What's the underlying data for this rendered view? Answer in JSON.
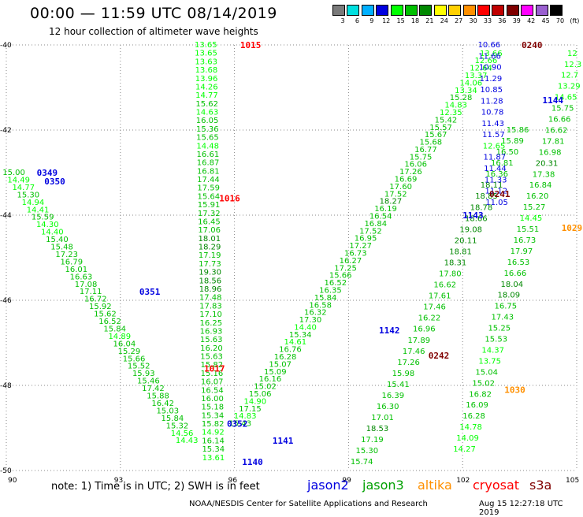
{
  "header": {
    "title": "00:00 — 11:59 UTC 08/14/2019",
    "subtitle": "12 hour collection of altimeter wave heights"
  },
  "colorbar": {
    "colors": [
      "#7a7a7a",
      "#00e0e0",
      "#00b0ff",
      "#0000e0",
      "#00ff00",
      "#00c000",
      "#008800",
      "#ffff00",
      "#ffd000",
      "#ff9000",
      "#ff0000",
      "#c00000",
      "#800000",
      "#ff00ff",
      "#9a60d0",
      "#000000"
    ],
    "labels": [
      "3",
      "6",
      "9",
      "12",
      "15",
      "18",
      "21",
      "24",
      "27",
      "30",
      "33",
      "36",
      "39",
      "42",
      "45",
      "70"
    ],
    "unit": "(ft)"
  },
  "footer": {
    "note": "note:  1) Time is in UTC;  2) SWH is in feet",
    "satellites": [
      {
        "name": "jason2",
        "color": "#0000e0"
      },
      {
        "name": "jason3",
        "color": "#00a000"
      },
      {
        "name": "altika",
        "color": "#ff9000"
      },
      {
        "name": "cryosat",
        "color": "#ff0000"
      },
      {
        "name": "s3a",
        "color": "#800000"
      }
    ],
    "credit": "NOAA/NESDIS Center for Satellite Applications and Research",
    "timestamp": "Aug 15 12:27:18 UTC 2019"
  },
  "chart_data": {
    "type": "scatter",
    "title": "00:00 — 11:59 UTC 08/14/2019",
    "xlim": [
      90,
      105
    ],
    "ylim": [
      -50,
      -40
    ],
    "x_ticks": [
      "90",
      "93",
      "96",
      "99",
      "102",
      "105"
    ],
    "y_ticks": [
      "-40",
      "-42",
      "-44",
      "-46",
      "-48",
      "-50"
    ],
    "grid": true,
    "tracks": [
      {
        "start": [
          90.15,
          -43.0
        ],
        "end": [
          94.7,
          -49.3
        ],
        "values": [
          "15.00",
          "14.49",
          "14.77",
          "15.30",
          "14.94",
          "14.41",
          "15.59",
          "14.30",
          "14.40",
          "15.40",
          "15.48",
          "17.23",
          "16.79",
          "16.01",
          "16.63",
          "17.08",
          "17.11",
          "16.72",
          "15.92",
          "15.62",
          "16.52",
          "15.84",
          "14.89",
          "16.04",
          "15.29",
          "15.66",
          "15.52",
          "15.93",
          "15.46",
          "17.42",
          "15.88",
          "16.42",
          "15.03",
          "15.84",
          "15.32",
          "14.56",
          "14.43"
        ]
      },
      {
        "start": [
          95.2,
          -40.0
        ],
        "end": [
          95.4,
          -49.7
        ],
        "values": [
          "13.65",
          "13.65",
          "13.63",
          "13.68",
          "13.96",
          "14.26",
          "14.77",
          "15.62",
          "14.63",
          "16.05",
          "15.36",
          "15.65",
          "14.48",
          "16.61",
          "16.87",
          "16.81",
          "17.44",
          "17.59",
          "15.64",
          "15.91",
          "17.32",
          "16.45",
          "17.06",
          "18.01",
          "18.29",
          "17.19",
          "17.73",
          "19.30",
          "18.56",
          "18.96",
          "17.48",
          "17.83",
          "17.10",
          "16.25",
          "16.93",
          "15.63",
          "16.20",
          "15.63",
          "15.82",
          "15.16",
          "16.07",
          "16.54",
          "16.00",
          "15.18",
          "15.34",
          "15.82",
          "14.92",
          "16.14",
          "15.34",
          "13.61"
        ]
      },
      {
        "start": [
          96.1,
          -48.9
        ],
        "end": [
          102.7,
          -40.2
        ],
        "values": [
          "15.43",
          "14.83",
          "17.15",
          "14.90",
          "15.06",
          "15.02",
          "16.16",
          "15.09",
          "15.07",
          "16.28",
          "16.76",
          "14.61",
          "15.34",
          "14.40",
          "17.30",
          "16.32",
          "16.58",
          "15.84",
          "16.35",
          "16.52",
          "15.66",
          "17.25",
          "16.27",
          "16.73",
          "17.27",
          "16.95",
          "17.52",
          "16.84",
          "16.54",
          "16.19",
          "18.27",
          "17.52",
          "17.60",
          "16.69",
          "17.26",
          "16.06",
          "15.75",
          "16.77",
          "15.68",
          "15.67",
          "15.57",
          "15.42",
          "12.35",
          "14.83",
          "15.28",
          "13.34",
          "14.06",
          "13.37",
          "12.64",
          "12.66",
          "13.66"
        ]
      },
      {
        "start": [
          99.3,
          -49.8
        ],
        "end": [
          103.4,
          -42.0
        ],
        "values": [
          "15.74",
          "15.30",
          "17.19",
          "18.53",
          "17.01",
          "16.30",
          "16.39",
          "15.41",
          "15.98",
          "17.26",
          "17.46",
          "17.89",
          "16.96",
          "16.22",
          "17.46",
          "17.61",
          "16.62",
          "17.80",
          "18.31",
          "18.81",
          "20.11",
          "19.08",
          "18.66",
          "18.78",
          "18.85",
          "18.11",
          "16.36",
          "16.81",
          "16.50",
          "15.89",
          "15.86"
        ]
      },
      {
        "start": [
          102.0,
          -49.5
        ],
        "end": [
          105.0,
          -40.2
        ],
        "values": [
          "14.27",
          "14.09",
          "14.78",
          "16.28",
          "16.09",
          "16.82",
          "15.02",
          "15.04",
          "13.75",
          "14.37",
          "15.53",
          "15.25",
          "17.43",
          "16.75",
          "18.09",
          "18.04",
          "16.66",
          "16.53",
          "17.97",
          "16.73",
          "15.51",
          "14.45",
          "15.27",
          "16.20",
          "16.84",
          "17.38",
          "20.31",
          "16.98",
          "17.81",
          "16.62",
          "16.66",
          "15.75",
          "14.65",
          "13.29",
          "12.7",
          "12.3",
          "12"
        ]
      },
      {
        "start": [
          102.65,
          -40.0
        ],
        "end": [
          102.85,
          -43.7
        ],
        "values": [
          "10.66",
          "11.66",
          "10.90",
          "11.29",
          "10.85",
          "11.28",
          "10.78",
          "11.43",
          "11.57",
          "12.65",
          "11.87",
          "11.44",
          "11.33",
          "11.12",
          "11.05"
        ]
      }
    ],
    "time_labels": [
      {
        "text": "1015",
        "x": 96.15,
        "y": -40.0,
        "color": "#ff0000"
      },
      {
        "text": "0240",
        "x": 103.55,
        "y": -40.0,
        "color": "#800000"
      },
      {
        "text": "0349",
        "x": 90.8,
        "y": -43.0,
        "color": "#0000e0"
      },
      {
        "text": "0350",
        "x": 91.0,
        "y": -43.2,
        "color": "#0000e0"
      },
      {
        "text": "1144",
        "x": 104.1,
        "y": -41.3,
        "color": "#0000e0"
      },
      {
        "text": "1016",
        "x": 95.6,
        "y": -43.6,
        "color": "#ff0000"
      },
      {
        "text": "0241",
        "x": 102.7,
        "y": -43.5,
        "color": "#800000"
      },
      {
        "text": "1143",
        "x": 102.0,
        "y": -44.0,
        "color": "#0000e0"
      },
      {
        "text": "1029",
        "x": 104.6,
        "y": -44.3,
        "color": "#ff9000"
      },
      {
        "text": "0351",
        "x": 93.5,
        "y": -45.8,
        "color": "#0000e0"
      },
      {
        "text": "1142",
        "x": 99.8,
        "y": -46.7,
        "color": "#0000e0"
      },
      {
        "text": "0242",
        "x": 101.1,
        "y": -47.3,
        "color": "#800000"
      },
      {
        "text": "1017",
        "x": 95.2,
        "y": -47.6,
        "color": "#ff0000"
      },
      {
        "text": "1030",
        "x": 103.1,
        "y": -48.1,
        "color": "#ff9000"
      },
      {
        "text": "0352",
        "x": 95.8,
        "y": -48.9,
        "color": "#0000e0"
      },
      {
        "text": "1141",
        "x": 97.0,
        "y": -49.3,
        "color": "#0000e0"
      },
      {
        "text": "1140",
        "x": 96.2,
        "y": -49.8,
        "color": "#0000e0"
      }
    ]
  }
}
